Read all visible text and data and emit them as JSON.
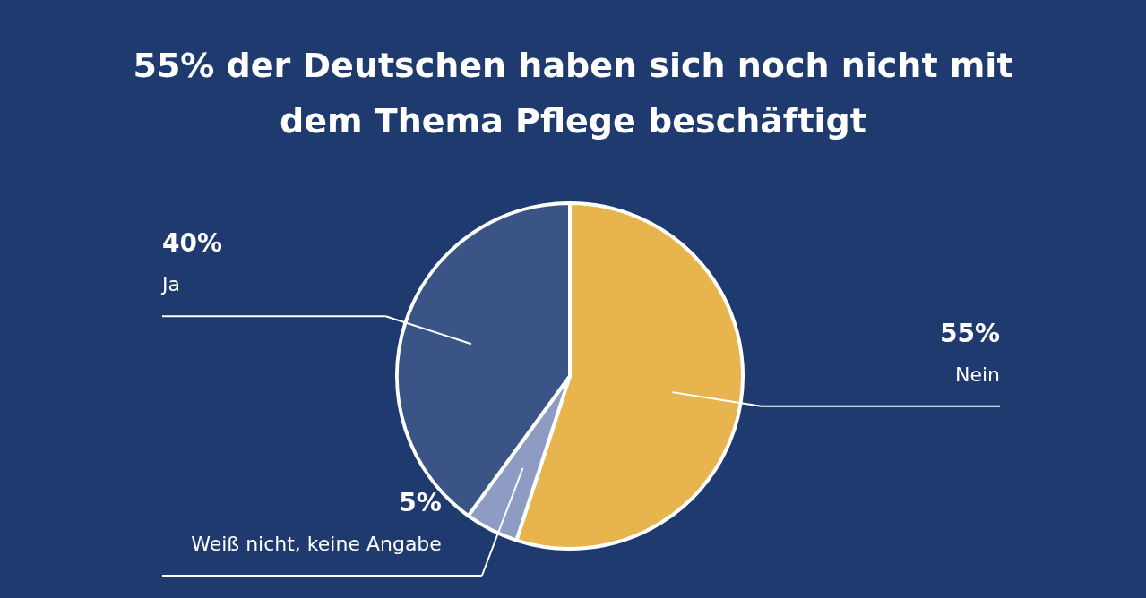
{
  "chart_data": {
    "type": "pie",
    "title": "55% der Deutschen haben sich noch nicht mit dem Thema Pflege beschäftigt",
    "categories": [
      "Nein",
      "Weiß nicht, keine Angabe",
      "Ja"
    ],
    "values": [
      55,
      5,
      40
    ],
    "value_labels": [
      "55%",
      "5%",
      "40%"
    ],
    "colors": [
      "#e8b44e",
      "#8e9cc4",
      "#3a5485"
    ]
  }
}
